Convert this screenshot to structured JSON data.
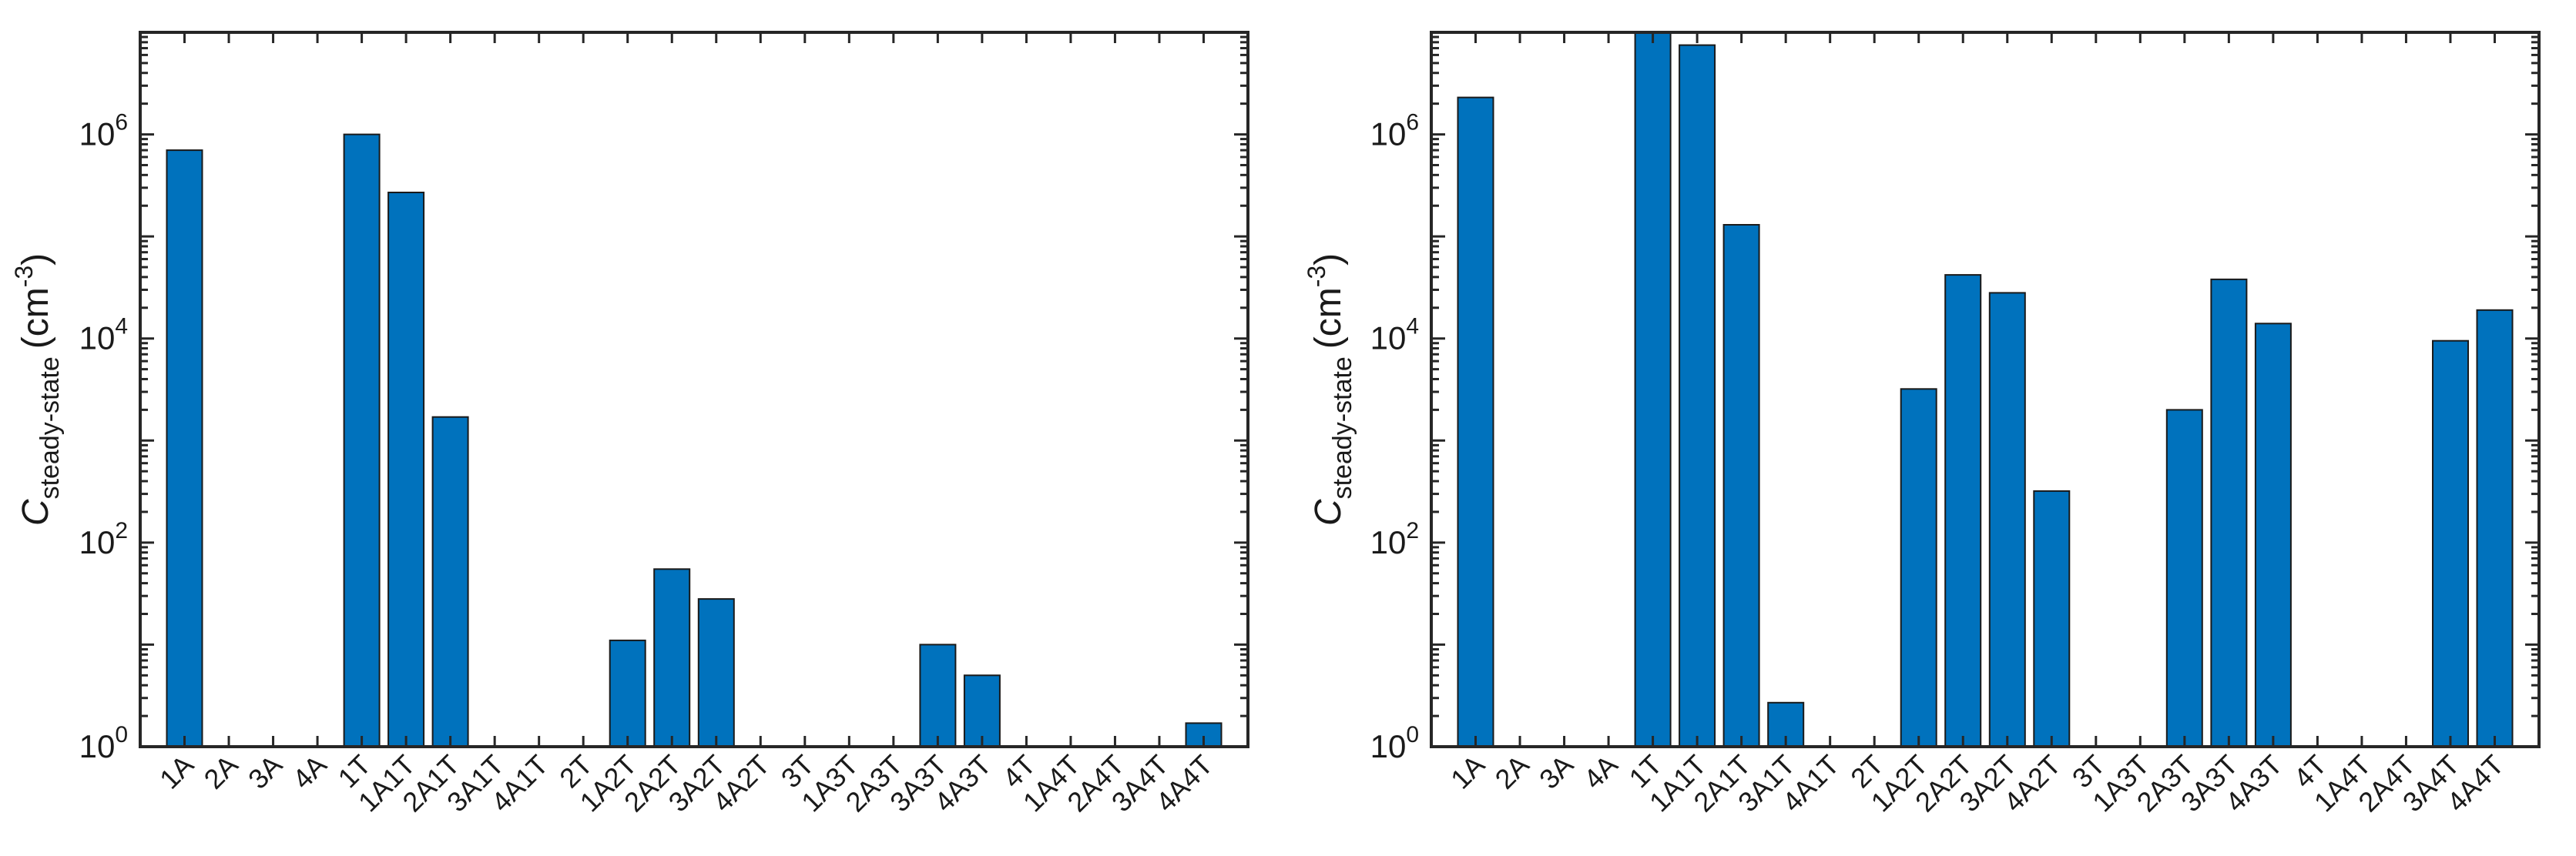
{
  "chart_data": [
    {
      "type": "bar",
      "yscale": "log",
      "ylim": [
        1,
        10000000
      ],
      "ylabel": "C",
      "ylabel_subscript": "steady-state",
      "ylabel_units_open": "(cm",
      "ylabel_units_exp": "-3",
      "ylabel_units_close": ")",
      "ytick_base": "10",
      "yticks": [
        {
          "value": 1,
          "exp": "0"
        },
        {
          "value": 100,
          "exp": "2"
        },
        {
          "value": 10000,
          "exp": "4"
        },
        {
          "value": 1000000,
          "exp": "6"
        }
      ],
      "categories": [
        "1A",
        "2A",
        "3A",
        "4A",
        "1T",
        "1A1T",
        "2A1T",
        "3A1T",
        "4A1T",
        "2T",
        "1A2T",
        "2A2T",
        "3A2T",
        "4A2T",
        "3T",
        "1A3T",
        "2A3T",
        "3A3T",
        "4A3T",
        "4T",
        "1A4T",
        "2A4T",
        "3A4T",
        "4A4T"
      ],
      "values": [
        700000,
        null,
        null,
        null,
        1000000,
        270000,
        1700,
        null,
        null,
        null,
        11,
        55,
        28,
        null,
        null,
        null,
        null,
        10,
        5,
        null,
        null,
        null,
        null,
        1.7
      ],
      "bar_color": "#0072BD",
      "grid": false,
      "legend": "none"
    },
    {
      "type": "bar",
      "yscale": "log",
      "ylim": [
        1,
        10000000
      ],
      "ylabel": "C",
      "ylabel_subscript": "steady-state",
      "ylabel_units_open": "(cm",
      "ylabel_units_exp": "-3",
      "ylabel_units_close": ")",
      "ytick_base": "10",
      "yticks": [
        {
          "value": 1,
          "exp": "0"
        },
        {
          "value": 100,
          "exp": "2"
        },
        {
          "value": 10000,
          "exp": "4"
        },
        {
          "value": 1000000,
          "exp": "6"
        }
      ],
      "categories": [
        "1A",
        "2A",
        "3A",
        "4A",
        "1T",
        "1A1T",
        "2A1T",
        "3A1T",
        "4A1T",
        "2T",
        "1A2T",
        "2A2T",
        "3A2T",
        "4A2T",
        "3T",
        "1A3T",
        "2A3T",
        "3A3T",
        "4A3T",
        "4T",
        "1A4T",
        "2A4T",
        "3A4T",
        "4A4T"
      ],
      "values": [
        2300000,
        null,
        null,
        null,
        10000000,
        7500000,
        130000,
        2.7,
        null,
        null,
        3200,
        42000,
        28000,
        320,
        null,
        null,
        2000,
        38000,
        14000,
        null,
        null,
        null,
        9500,
        19000
      ],
      "bar_color": "#0072BD",
      "grid": false,
      "legend": "none"
    }
  ]
}
